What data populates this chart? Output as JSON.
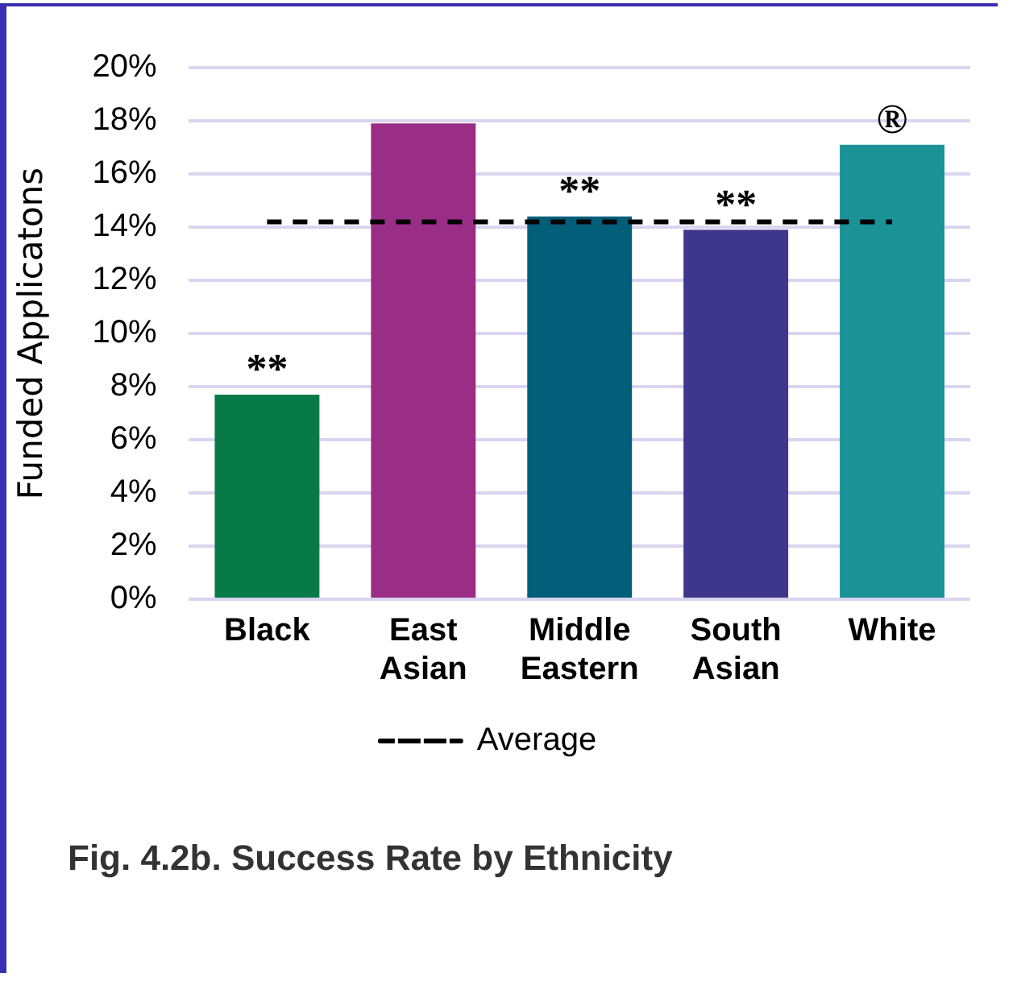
{
  "chart_data": {
    "type": "bar",
    "title": "Fig. 4.2b. Success Rate by Ethnicity",
    "ylabel": "Funded Applicatons",
    "categories": [
      "Black",
      "East Asian",
      "Middle Eastern",
      "South Asian",
      "White"
    ],
    "values": [
      7.7,
      17.9,
      14.4,
      13.9,
      17.1
    ],
    "colors": [
      "#077a48",
      "#9a2e86",
      "#035e79",
      "#3f378d",
      "#1a9296"
    ],
    "ylim": [
      0,
      20
    ],
    "yticks": [
      {
        "value": 0,
        "label": "0%"
      },
      {
        "value": 2,
        "label": "2%"
      },
      {
        "value": 4,
        "label": "4%"
      },
      {
        "value": 6,
        "label": "6%"
      },
      {
        "value": 8,
        "label": "8%"
      },
      {
        "value": 10,
        "label": "10%"
      },
      {
        "value": 12,
        "label": "12%"
      },
      {
        "value": 14,
        "label": "14%"
      },
      {
        "value": 16,
        "label": "16%"
      },
      {
        "value": 18,
        "label": "18%"
      },
      {
        "value": 20,
        "label": "20%"
      }
    ],
    "grid": "y",
    "legend": "bottom",
    "ref_lines": [
      {
        "axis": "y",
        "value": 14.2,
        "label": "Average",
        "color": "#000000",
        "line_style": "dashed"
      }
    ],
    "annotations": [
      {
        "text": "**",
        "x": "Black",
        "y": 7.7
      },
      {
        "text": "**",
        "x": "Middle Eastern",
        "y": 14.4
      },
      {
        "text": "**",
        "x": "South Asian",
        "y": 13.9
      },
      {
        "text": "®",
        "x": "White",
        "y": 17.1
      }
    ]
  }
}
